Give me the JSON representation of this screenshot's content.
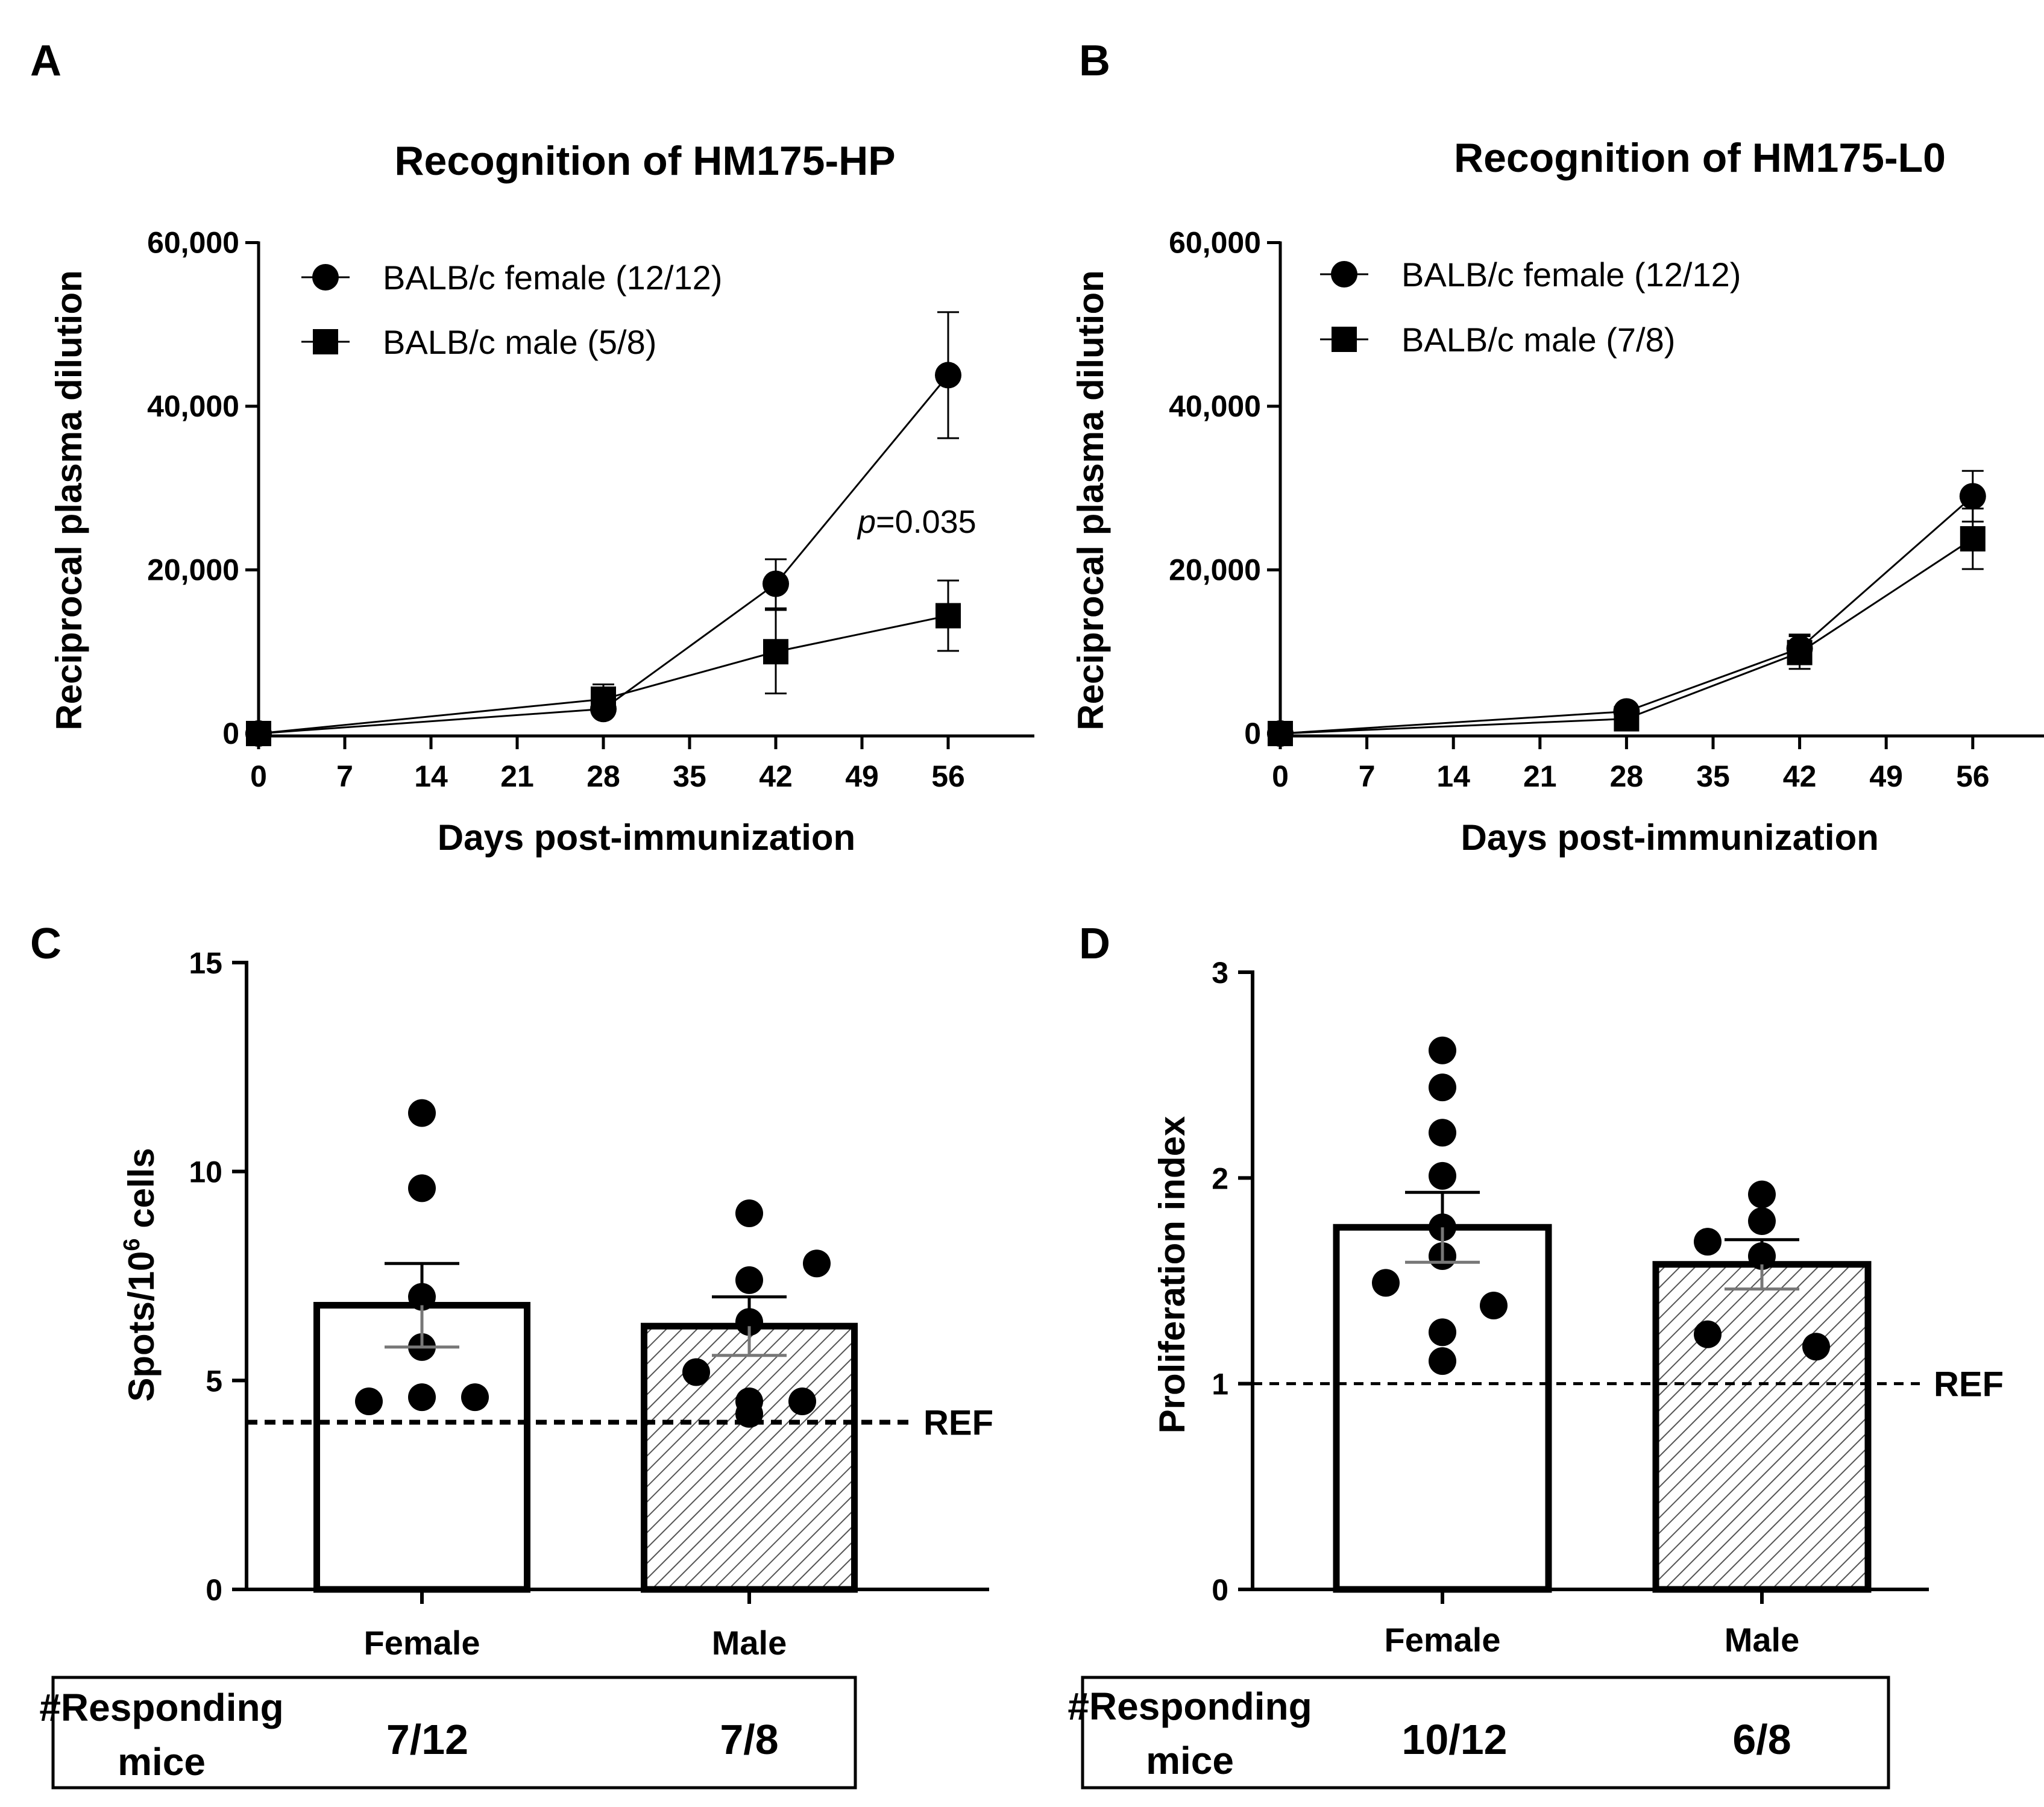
{
  "chart_data": [
    {
      "panel": "A",
      "type": "line",
      "title": "Recognition of HM175-HP",
      "xlabel": "Days post-immunization",
      "ylabel": "Reciprocal plasma dilution",
      "xlim": [
        0,
        63
      ],
      "ylim": [
        0,
        60000
      ],
      "xticks": [
        0,
        7,
        14,
        21,
        28,
        35,
        42,
        49,
        56
      ],
      "xtick_labels": [
        "0",
        "7",
        "14",
        "21",
        "28",
        "35",
        "42",
        "49",
        "56"
      ],
      "yticks": [
        0,
        20000,
        40000,
        60000
      ],
      "ytick_labels": [
        "0",
        "20,000",
        "40,000",
        "60,000"
      ],
      "legend_position": "top-left",
      "series": [
        {
          "name": "BALB/c female (12/12)",
          "marker": "circle",
          "x": [
            0,
            28,
            42,
            56
          ],
          "y": [
            0,
            3000,
            18300,
            43800
          ],
          "err": [
            0,
            800,
            3000,
            7700
          ]
        },
        {
          "name": "BALB/c male (5/8)",
          "marker": "square",
          "x": [
            0,
            28,
            42,
            56
          ],
          "y": [
            0,
            4200,
            10000,
            14400
          ],
          "err": [
            0,
            1800,
            5100,
            4300
          ]
        }
      ],
      "annotations": [
        {
          "text_italic": "p",
          "text": "=0.035",
          "x": 56,
          "y": 26000
        }
      ]
    },
    {
      "panel": "B",
      "type": "line",
      "title": "Recognition of HM175-L0",
      "xlabel": "Days post-immunization",
      "ylabel": "Reciprocal plasma dilution",
      "xlim": [
        0,
        63
      ],
      "ylim": [
        0,
        60000
      ],
      "xticks": [
        0,
        7,
        14,
        21,
        28,
        35,
        42,
        49,
        56
      ],
      "xtick_labels": [
        "0",
        "7",
        "14",
        "21",
        "28",
        "35",
        "42",
        "49",
        "56"
      ],
      "yticks": [
        0,
        20000,
        40000,
        60000
      ],
      "ytick_labels": [
        "0",
        "20,000",
        "40,000",
        "60,000"
      ],
      "legend_position": "top-left",
      "series": [
        {
          "name": "BALB/c female (12/12)",
          "marker": "circle",
          "x": [
            0,
            28,
            42,
            56
          ],
          "y": [
            0,
            2700,
            10400,
            29000
          ],
          "err": [
            0,
            700,
            1700,
            3100
          ]
        },
        {
          "name": "BALB/c male (7/8)",
          "marker": "square",
          "x": [
            0,
            28,
            42,
            56
          ],
          "y": [
            0,
            1800,
            9900,
            23800
          ],
          "err": [
            0,
            600,
            2000,
            3700
          ]
        }
      ]
    },
    {
      "panel": "C",
      "type": "bar",
      "categories": [
        "Female",
        "Male"
      ],
      "values": [
        6.8,
        6.3
      ],
      "sem": [
        1.0,
        0.7
      ],
      "patterns": [
        "none",
        "hatch"
      ],
      "points": [
        [
          11.4,
          9.6,
          7.0,
          5.8,
          4.5,
          4.6,
          4.6
        ],
        [
          9.0,
          7.8,
          7.4,
          6.4,
          5.2,
          4.2,
          4.5,
          4.5
        ]
      ],
      "ylabel_parts": [
        "Spots/10",
        "6",
        " cells"
      ],
      "ylim": [
        0,
        15
      ],
      "yticks": [
        0,
        5,
        10,
        15
      ],
      "ytick_labels": [
        "0",
        "5",
        "10",
        "15"
      ],
      "reference": {
        "value": 4.0,
        "label": "REF"
      },
      "responding": {
        "label_line1": "#Responding",
        "label_line2": "mice",
        "values": [
          "7/12",
          "7/8"
        ]
      }
    },
    {
      "panel": "D",
      "type": "bar",
      "categories": [
        "Female",
        "Male"
      ],
      "values": [
        1.76,
        1.58
      ],
      "sem": [
        0.17,
        0.12
      ],
      "patterns": [
        "none",
        "hatch"
      ],
      "points": [
        [
          2.62,
          2.44,
          2.22,
          2.01,
          1.76,
          1.62,
          1.49,
          1.38,
          1.25,
          1.11
        ],
        [
          1.92,
          1.79,
          1.69,
          1.62,
          1.24,
          1.18
        ]
      ],
      "ylabel": "Proliferation index",
      "ylim": [
        0,
        3
      ],
      "yticks": [
        0,
        1,
        2,
        3
      ],
      "ytick_labels": [
        "0",
        "1",
        "2",
        "3"
      ],
      "reference": {
        "value": 1.0,
        "label": "REF"
      },
      "responding": {
        "label_line1": "#Responding",
        "label_line2": "mice",
        "values": [
          "10/12",
          "6/8"
        ]
      }
    }
  ]
}
